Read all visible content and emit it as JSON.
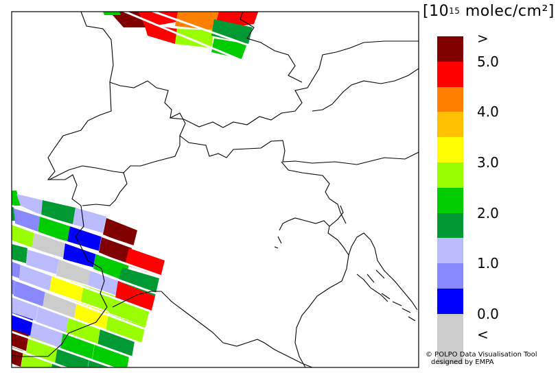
{
  "legend": {
    "unit_prefix": "10",
    "unit_exponent": "15",
    "unit_suffix": "molec/cm²",
    "swatches": [
      {
        "color": "#800000",
        "label": ">"
      },
      {
        "color": "#ff0000",
        "label": "5.0"
      },
      {
        "color": "#ff8000",
        "label": ""
      },
      {
        "color": "#ffc000",
        "label": "4.0"
      },
      {
        "color": "#ffff00",
        "label": ""
      },
      {
        "color": "#99ff00",
        "label": "3.0"
      },
      {
        "color": "#00cc00",
        "label": ""
      },
      {
        "color": "#009933",
        "label": "2.0"
      },
      {
        "color": "#bbbbff",
        "label": ""
      },
      {
        "color": "#8888ff",
        "label": "1.0"
      },
      {
        "color": "#0000ff",
        "label": ""
      },
      {
        "color": "#cccccc",
        "label": "0.0"
      },
      {
        "color": "#cccccc",
        "label": "<"
      }
    ],
    "labels": [
      ">",
      "5.0",
      "4.0",
      "3.0",
      "2.0",
      "1.0",
      "0.0",
      "<"
    ]
  },
  "credit": {
    "line1": "© POLPO Data Visualisation Tool",
    "line2": "designed by EMPA"
  }
}
